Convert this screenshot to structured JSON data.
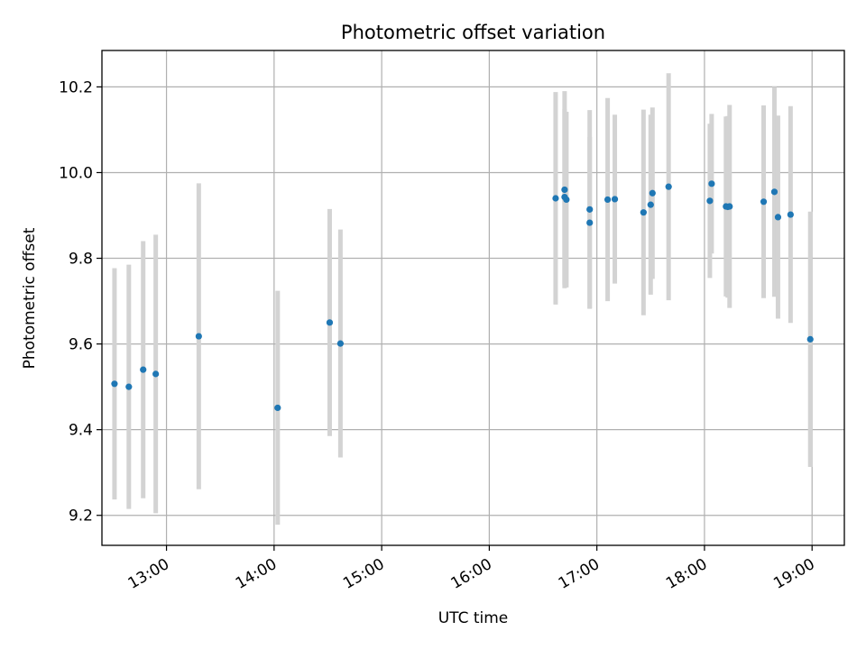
{
  "chart_data": {
    "type": "scatter",
    "title": "Photometric offset variation",
    "xlabel": "UTC time",
    "ylabel": "Photometric offset",
    "x_axis_kind": "time",
    "date": "",
    "xlim": [
      "12:24",
      "19:18"
    ],
    "ylim": [
      9.13,
      10.285
    ],
    "x_ticks": [
      "13:00",
      "14:00",
      "15:00",
      "16:00",
      "17:00",
      "18:00",
      "19:00"
    ],
    "y_ticks": [
      9.2,
      9.4,
      9.6,
      9.8,
      10.0,
      10.2
    ],
    "y_tick_labels": [
      "9.2",
      "9.4",
      "9.6",
      "9.8",
      "10.0",
      "10.2"
    ],
    "grid": true,
    "legend": "none",
    "colors": {
      "point": "#1f77b4",
      "errorbar": "#d3d3d3",
      "grid": "#b0b0b0",
      "axes": "#000000"
    },
    "series": [
      {
        "x": [
          "12:31",
          "12:39",
          "12:47",
          "12:54",
          "13:18",
          "14:02",
          "14:31",
          "14:37",
          "16:37",
          "16:42",
          "16:42",
          "16:43",
          "16:56",
          "16:56",
          "17:06",
          "17:10",
          "17:26",
          "17:30",
          "17:31",
          "17:40",
          "18:03",
          "18:04",
          "18:12",
          "18:13",
          "18:14",
          "18:33",
          "18:39",
          "18:41",
          "18:48",
          "18:59"
        ],
        "y": [
          9.507,
          9.5,
          9.54,
          9.53,
          9.618,
          9.451,
          9.65,
          9.601,
          9.94,
          9.96,
          9.943,
          9.937,
          9.914,
          9.883,
          9.937,
          9.938,
          9.907,
          9.925,
          9.952,
          9.967,
          9.934,
          9.974,
          9.921,
          9.92,
          9.921,
          9.932,
          9.955,
          9.896,
          9.902,
          9.611
        ],
        "yerr": [
          0.27,
          0.285,
          0.3,
          0.325,
          0.357,
          0.273,
          0.265,
          0.266,
          0.248,
          0.23,
          0.205,
          0.205,
          0.232,
          0.2,
          0.237,
          0.197,
          0.24,
          0.21,
          0.2,
          0.265,
          0.18,
          0.163,
          0.21,
          0.212,
          0.237,
          0.225,
          0.245,
          0.237,
          0.253,
          0.298
        ]
      }
    ]
  }
}
